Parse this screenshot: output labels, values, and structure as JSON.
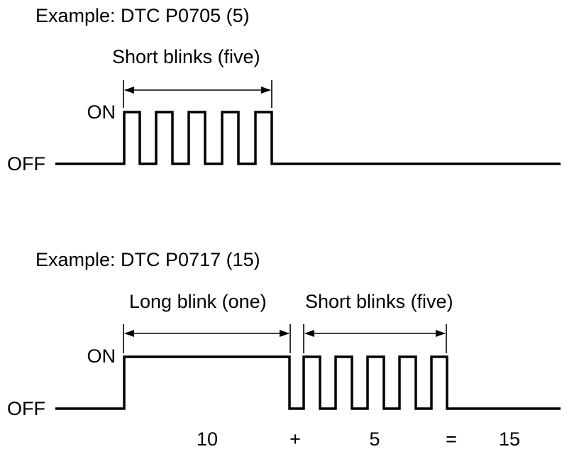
{
  "example1": {
    "title": "Example: DTC P0705 (5)",
    "span_label": "Short blinks (five)",
    "on_label": "ON",
    "off_label": "OFF"
  },
  "example2": {
    "title": "Example: DTC P0717 (15)",
    "long_label": "Long blink (one)",
    "short_label": "Short blinks (five)",
    "on_label": "ON",
    "off_label": "OFF",
    "sum": {
      "term1": "10",
      "plus": "+",
      "term2": "5",
      "equals": "=",
      "result": "15"
    }
  }
}
